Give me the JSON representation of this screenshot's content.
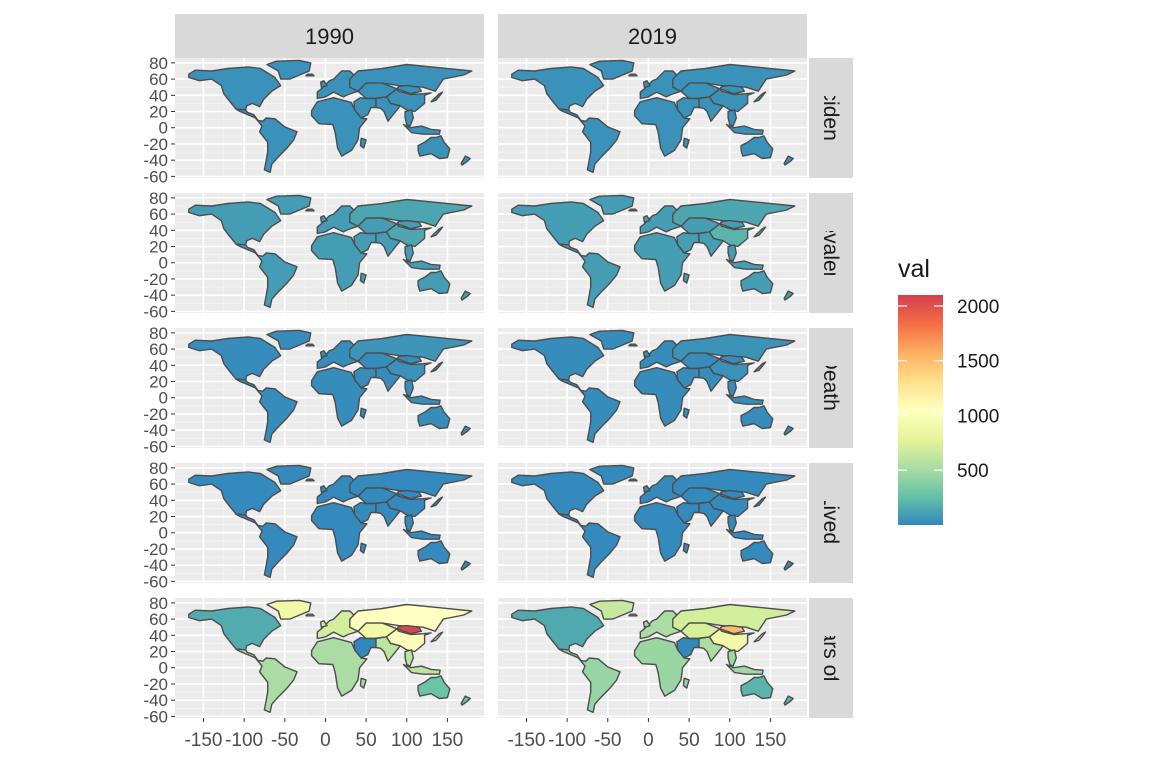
{
  "chart_data": {
    "type": "heatmap",
    "subtype": "faceted choropleth world map",
    "columns": [
      "1990",
      "2019"
    ],
    "rows": [
      "Incidence",
      "Prevalence",
      "Deaths",
      "Years Lived with Disability",
      "Years of Life Lost"
    ],
    "row_labels_visible": [
      "Incidence",
      "Prevalence",
      "Deaths",
      "rs Lived wit",
      "Years of Lif"
    ],
    "x_ticks": [
      -150,
      -100,
      -50,
      0,
      50,
      100,
      150
    ],
    "x_tick_labels": [
      "-150",
      "-100",
      "-50",
      "0",
      "50",
      "100",
      "150"
    ],
    "y_ticks": [
      80,
      60,
      40,
      20,
      0,
      -20,
      -40,
      -60
    ],
    "y_tick_labels": [
      "80",
      "60",
      "40",
      "20",
      "0",
      "-20",
      "-40",
      "-60"
    ],
    "xlim": [
      -185,
      195
    ],
    "ylim": [
      -62,
      86
    ],
    "grid": true,
    "xlabel": "",
    "ylabel": "",
    "title": "",
    "legend": {
      "title": "val",
      "position": "right",
      "ticks": [
        2000,
        1500,
        1000,
        500
      ],
      "tick_labels": [
        "2000",
        "1500",
        "1000",
        "500"
      ],
      "range": [
        0,
        2100
      ],
      "palette": [
        "#3288bd",
        "#66c2a5",
        "#abdda4",
        "#e6f598",
        "#ffffbf",
        "#fee08b",
        "#fdae61",
        "#f46d43",
        "#d53e4f"
      ]
    },
    "approx_regional_values": {
      "Years of Life Lost": {
        "1990": {
          "north_america": 160,
          "greenland": 900,
          "latin_america": 520,
          "europe": 700,
          "russia": 1050,
          "central_asia": 900,
          "china": 1000,
          "mongolia": 2050,
          "south_asia": 600,
          "africa": 520,
          "southeast_asia": 600,
          "australia": 280
        },
        "2019": {
          "north_america": 150,
          "greenland": 650,
          "latin_america": 450,
          "europe": 520,
          "russia": 700,
          "central_asia": 720,
          "china": 900,
          "mongolia": 1500,
          "south_asia": 520,
          "africa": 460,
          "southeast_asia": 480,
          "australia": 200
        }
      },
      "Prevalence": {
        "1990": {
          "default": 90,
          "russia": 130,
          "china": 140
        },
        "2019": {
          "default": 100,
          "russia": 140,
          "china": 200
        }
      },
      "Deaths": {
        "1990": {
          "default": 20,
          "russia": 60,
          "china": 40
        },
        "2019": {
          "default": 20,
          "russia": 50,
          "china": 40
        }
      },
      "Incidence": {
        "1990": {
          "default": 40
        },
        "2019": {
          "default": 40
        }
      },
      "Years Lived with Disability": {
        "1990": {
          "default": 10
        },
        "2019": {
          "default": 10
        }
      }
    }
  }
}
